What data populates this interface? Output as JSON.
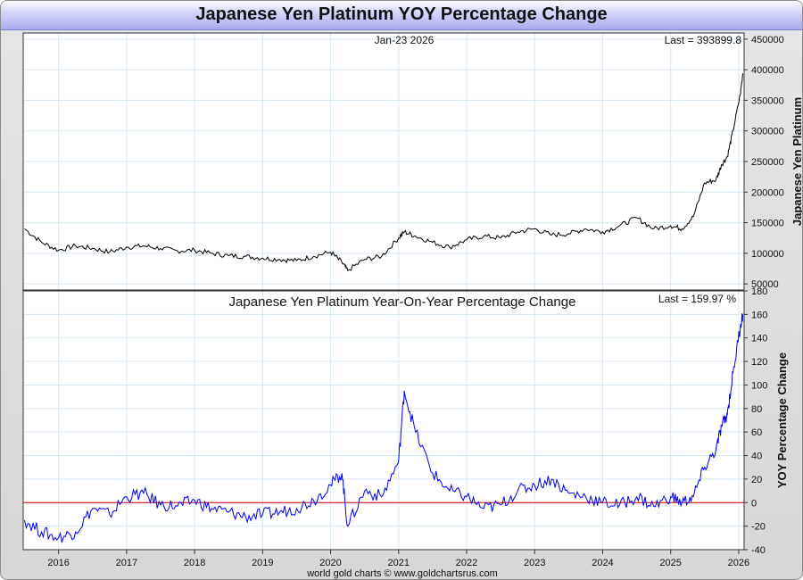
{
  "title": "Japanese Yen Platinum YOY Percentage Change",
  "footer": "world gold charts © www.goldchartsrus.com",
  "chart_data": [
    {
      "type": "line",
      "ylabel": "Japanese Yen Platinum",
      "date_label": "Jan-23  2026",
      "last_label": "Last = 393899.8",
      "ylim": [
        40000,
        460000
      ],
      "yticks": [
        50000,
        100000,
        150000,
        200000,
        250000,
        300000,
        350000,
        400000,
        450000
      ],
      "line_color": "#000000",
      "grid": true,
      "x": [
        "2015-07",
        "2015-10",
        "2016-01",
        "2016-04",
        "2016-07",
        "2016-10",
        "2017-01",
        "2017-04",
        "2017-07",
        "2017-10",
        "2018-01",
        "2018-04",
        "2018-07",
        "2018-10",
        "2019-01",
        "2019-04",
        "2019-07",
        "2019-10",
        "2020-01",
        "2020-03",
        "2020-04",
        "2020-07",
        "2020-10",
        "2021-01",
        "2021-02",
        "2021-04",
        "2021-07",
        "2021-10",
        "2022-01",
        "2022-04",
        "2022-07",
        "2022-10",
        "2023-01",
        "2023-04",
        "2023-07",
        "2023-10",
        "2024-01",
        "2024-04",
        "2024-07",
        "2024-10",
        "2025-01",
        "2025-03",
        "2025-05",
        "2025-07",
        "2025-09",
        "2025-10",
        "2025-11",
        "2025-12",
        "2026-01-10",
        "2026-01-23"
      ],
      "y": [
        140000,
        118000,
        105000,
        112000,
        108000,
        102000,
        110000,
        112000,
        108000,
        104000,
        105000,
        100000,
        96000,
        95000,
        92000,
        90000,
        88000,
        95000,
        102000,
        85000,
        72000,
        90000,
        95000,
        125000,
        135000,
        128000,
        118000,
        110000,
        122000,
        128000,
        125000,
        135000,
        140000,
        130000,
        132000,
        140000,
        135000,
        145000,
        158000,
        140000,
        145000,
        140000,
        160000,
        215000,
        220000,
        245000,
        258000,
        300000,
        360000,
        393900
      ]
    },
    {
      "type": "line",
      "title": "Japanese Yen Platinum Year-On-Year Percentage Change",
      "ylabel": "YOY Percentage Change",
      "last_label": "Last = 159.97 %",
      "ylim": [
        -40,
        180
      ],
      "yticks": [
        -40,
        -20,
        0,
        20,
        40,
        60,
        80,
        100,
        120,
        140,
        160,
        180
      ],
      "reference_line": 0,
      "reference_color": "#cc0000",
      "line_color": "#0000ee",
      "grid": true,
      "x": [
        "2015-07",
        "2015-10",
        "2016-01",
        "2016-04",
        "2016-07",
        "2016-10",
        "2017-01",
        "2017-04",
        "2017-07",
        "2017-10",
        "2018-01",
        "2018-04",
        "2018-07",
        "2018-10",
        "2019-01",
        "2019-04",
        "2019-07",
        "2019-10",
        "2020-01",
        "2020-03",
        "2020-04",
        "2020-07",
        "2020-10",
        "2021-01",
        "2021-02",
        "2021-04",
        "2021-07",
        "2021-10",
        "2022-01",
        "2022-04",
        "2022-07",
        "2022-10",
        "2023-01",
        "2023-04",
        "2023-07",
        "2023-10",
        "2024-01",
        "2024-04",
        "2024-07",
        "2024-10",
        "2025-01",
        "2025-03",
        "2025-05",
        "2025-07",
        "2025-09",
        "2025-10",
        "2025-11",
        "2025-12",
        "2026-01-10",
        "2026-01-23"
      ],
      "y": [
        -15,
        -25,
        -30,
        -25,
        -5,
        -10,
        5,
        8,
        -2,
        -3,
        2,
        -5,
        -8,
        -12,
        -10,
        -8,
        -5,
        2,
        15,
        25,
        -20,
        10,
        5,
        35,
        95,
        60,
        25,
        10,
        5,
        -5,
        -2,
        10,
        15,
        20,
        8,
        5,
        0,
        -2,
        5,
        -3,
        5,
        0,
        5,
        30,
        45,
        65,
        75,
        110,
        150,
        160
      ]
    }
  ],
  "x_ticks": [
    "2016",
    "2017",
    "2018",
    "2019",
    "2020",
    "2021",
    "2022",
    "2023",
    "2024",
    "2025",
    "2026"
  ]
}
